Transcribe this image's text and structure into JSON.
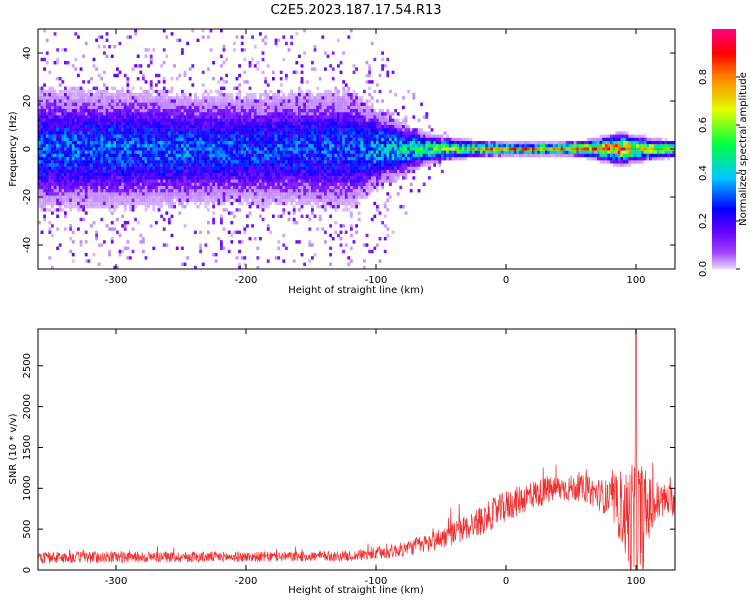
{
  "figure_title": "C2E5.2023.187.17.54.R13",
  "chart_data": [
    {
      "type": "heatmap",
      "title": "C2E5.2023.187.17.54.R13",
      "xlabel": "Height of straight line (km)",
      "ylabel": "Frequency (Hz)",
      "xlim": [
        -360,
        130
      ],
      "ylim": [
        -50,
        50
      ],
      "x_ticks": [
        -300,
        -200,
        -100,
        0,
        100
      ],
      "y_ticks": [
        -40,
        -20,
        0,
        20,
        40
      ],
      "colorbar": {
        "label": "Normalized spectral amplitude",
        "range": [
          0,
          1
        ],
        "ticks": [
          "0.0",
          "0.2",
          "0.4",
          "0.6",
          "0.8"
        ],
        "colormap": "gist_rainbow",
        "colors": [
          "#e0c8ff",
          "#8000ff",
          "#0000ff",
          "#00ffff",
          "#00ff00",
          "#ffff00",
          "#ff8000",
          "#ff0000",
          "#ff0080"
        ]
      },
      "spectral_profile": {
        "x": [
          -360,
          -300,
          -200,
          -120,
          -100,
          -80,
          -60,
          -40,
          -20,
          0,
          20,
          40,
          60,
          80,
          90,
          100,
          110,
          130
        ],
        "peak_amplitude": [
          0.35,
          0.35,
          0.33,
          0.33,
          0.42,
          0.48,
          0.55,
          0.62,
          0.75,
          0.82,
          0.85,
          0.85,
          0.82,
          0.9,
          0.92,
          0.7,
          0.8,
          0.75
        ],
        "bandwidth_hz": [
          12,
          12,
          11,
          12,
          8,
          5,
          3,
          2,
          1.5,
          1.2,
          1.2,
          1.2,
          1.5,
          2.5,
          3,
          2.5,
          2,
          1.5
        ],
        "noise_spread_hz": [
          50,
          50,
          50,
          50,
          50,
          30,
          15,
          5,
          2,
          1,
          1,
          1,
          2,
          4,
          5,
          4,
          3,
          2
        ]
      }
    },
    {
      "type": "line",
      "xlabel": "Height of straight line (km)",
      "ylabel": "SNR (10 * v/v)",
      "xlim": [
        -360,
        130
      ],
      "ylim": [
        0,
        2950
      ],
      "x_ticks": [
        -300,
        -200,
        -100,
        0,
        100
      ],
      "y_ticks": [
        0,
        500,
        1000,
        1500,
        2000,
        2500
      ],
      "color": "#f03030",
      "series": [
        {
          "x": [
            -360,
            -300,
            -200,
            -120,
            -100,
            -80,
            -60,
            -40,
            -20,
            0,
            20,
            40,
            60,
            80,
            90,
            100,
            110,
            120,
            130
          ],
          "values": [
            150,
            160,
            160,
            170,
            200,
            250,
            330,
            450,
            600,
            780,
            920,
            1000,
            1000,
            870,
            700,
            500,
            750,
            850,
            850
          ],
          "noise_amplitude": [
            80,
            80,
            70,
            70,
            90,
            100,
            130,
            160,
            200,
            220,
            200,
            180,
            180,
            250,
            500,
            1100,
            450,
            250,
            200
          ],
          "max_peak": [
            100,
            2950
          ]
        }
      ]
    }
  ]
}
